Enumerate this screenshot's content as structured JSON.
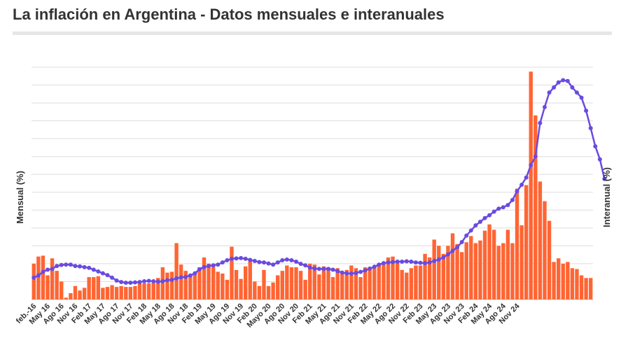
{
  "title": "La inflación en Argentina - Datos mensuales e interanuales",
  "colors": {
    "bar": "#ff6533",
    "line": "#6a4be0",
    "grid": "#dddddd",
    "text": "#333333"
  },
  "chart_data": {
    "type": "bar+line",
    "title": "La inflación en Argentina - Datos mensuales e interanuales",
    "ylabel": "Mensual (%)",
    "y2label": "Interanual (%)",
    "grid": true,
    "y_left_range": [
      0,
      26
    ],
    "y_right_range": [
      0,
      320
    ],
    "xlabels": [
      "feb.-16",
      "May 16",
      "Ago 16",
      "Nov 16",
      "Feb 17",
      "May 17",
      "Ago 17",
      "Nov 17",
      "Feb 18",
      "May 18",
      "Ago 18",
      "Nov 18",
      "Feb 19",
      "May 19",
      "Ago 19",
      "Nov 19",
      "Feb 20",
      "Mayo 20",
      "Ago 20",
      "Nov 20",
      "Feb 21",
      "May 21",
      "Ago 21",
      "Nov 21",
      "Feb 22",
      "May 22",
      "Ago 22",
      "Nov 22",
      "Feb 23",
      "May 23",
      "Ago 23",
      "Nov 23",
      "Feb 24",
      "May 24",
      "Ago 24",
      "Nov 24"
    ],
    "series": [
      {
        "name": "Mensual (%)",
        "type": "bar",
        "values": [
          4.0,
          4.8,
          4.9,
          2.7,
          4.6,
          3.2,
          2.0,
          0.2,
          0.7,
          1.5,
          1.0,
          1.3,
          2.5,
          2.5,
          2.6,
          1.3,
          1.4,
          1.6,
          1.4,
          1.5,
          1.4,
          1.4,
          1.5,
          1.8,
          1.8,
          1.8,
          1.9,
          2.4,
          3.6,
          3.0,
          3.1,
          6.3,
          3.9,
          3.2,
          2.6,
          2.8,
          3.6,
          4.7,
          4.0,
          3.7,
          3.1,
          2.9,
          2.2,
          5.9,
          3.3,
          2.3,
          3.7,
          4.3,
          2.0,
          1.5,
          3.3,
          1.5,
          1.9,
          2.7,
          3.2,
          3.8,
          3.6,
          3.6,
          3.2,
          2.2,
          4.0,
          3.9,
          2.8,
          3.7,
          3.6,
          2.5,
          3.5,
          3.0,
          3.3,
          3.8,
          3.5,
          2.5,
          3.6,
          3.5,
          3.5,
          3.9,
          4.0,
          4.7,
          4.8,
          4.1,
          3.3,
          3.0,
          3.5,
          3.8,
          3.8,
          5.1,
          4.7,
          6.7,
          6.0,
          5.1,
          6.0,
          7.4,
          6.2,
          5.3,
          6.4,
          7.1,
          6.3,
          6.6,
          7.7,
          8.4,
          7.8,
          6.0,
          6.3,
          7.8,
          6.3,
          12.4,
          8.3,
          12.8,
          25.5,
          20.6,
          13.2,
          11.0,
          8.8,
          4.2,
          4.6,
          4.0,
          4.2,
          3.5,
          3.4,
          2.7,
          2.4,
          2.4
        ]
      },
      {
        "name": "Interanual (%)",
        "type": "line",
        "values": [
          30.0,
          33.0,
          38.0,
          41.0,
          42.0,
          46.0,
          47.5,
          48.0,
          48.0,
          46.0,
          45.5,
          44.5,
          43.5,
          41.0,
          38.5,
          36.0,
          33.5,
          30.0,
          26.0,
          24.0,
          23.0,
          23.0,
          23.5,
          24.0,
          25.0,
          25.5,
          25.0,
          24.5,
          25.0,
          26.5,
          27.0,
          29.0,
          30.5,
          31.0,
          33.0,
          36.0,
          41.5,
          44.5,
          46.0,
          47.0,
          48.0,
          51.0,
          54.0,
          56.0,
          56.5,
          57.0,
          56.0,
          54.5,
          53.0,
          51.5,
          51.0,
          49.5,
          48.0,
          51.0,
          54.0,
          55.0,
          54.0,
          52.0,
          49.0,
          47.0,
          44.0,
          42.5,
          42.0,
          42.0,
          42.0,
          41.0,
          39.0,
          37.0,
          36.0,
          35.5,
          36.5,
          38.0,
          40.0,
          42.5,
          45.0,
          48.0,
          50.0,
          51.0,
          51.5,
          52.0,
          52.0,
          52.5,
          52.0,
          51.0,
          50.5,
          50.0,
          51.0,
          53.0,
          55.0,
          58.0,
          62.0,
          67.0,
          72.0,
          79.0,
          88.0,
          95.0,
          102.0,
          107.0,
          112.0,
          116.0,
          121.0,
          125.0,
          127.0,
          130.0,
          137.0,
          149.0,
          158.0,
          168.0,
          185.0,
          197.0,
          243.0,
          265.0,
          285.0,
          292.0,
          299.0,
          302.0,
          301.0,
          292.0,
          285.0,
          278.0,
          260.0,
          236.0,
          211.0,
          193.0,
          166.0
        ]
      }
    ]
  }
}
